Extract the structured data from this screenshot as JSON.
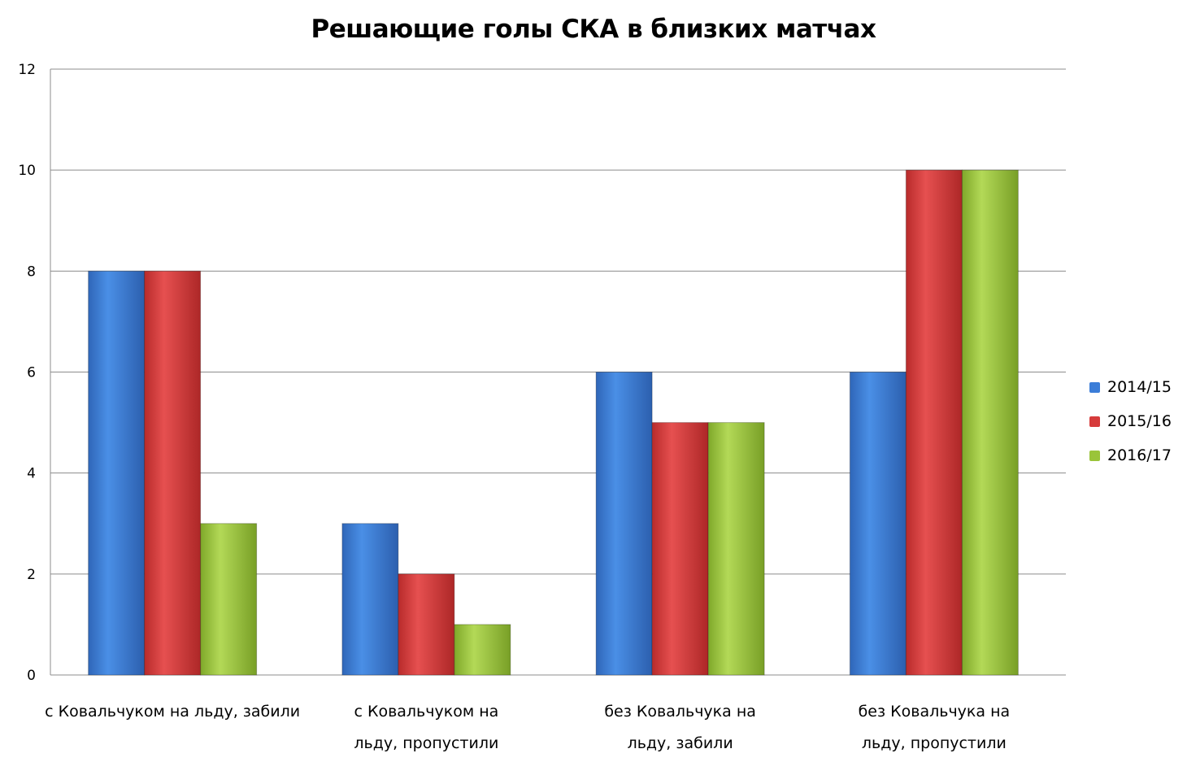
{
  "chart_data": {
    "type": "bar",
    "title": "Решающие голы СКА в близких матчах",
    "categories": [
      [
        "с Ковальчуком на льду, забили"
      ],
      [
        "с Ковальчуком на",
        "льду, пропустили"
      ],
      [
        "без Ковальчука на",
        "льду, забили"
      ],
      [
        "без Ковальчука на",
        "льду, пропустили"
      ]
    ],
    "series": [
      {
        "name": "2014/15",
        "values": [
          8,
          3,
          6,
          6
        ],
        "color": "#3b7dd8"
      },
      {
        "name": "2015/16",
        "values": [
          8,
          2,
          5,
          10
        ],
        "color": "#d63b3b"
      },
      {
        "name": "2016/17",
        "values": [
          3,
          1,
          5,
          10
        ],
        "color": "#9ac43a"
      }
    ],
    "ylim": [
      0,
      12
    ],
    "yticks": [
      0,
      2,
      4,
      6,
      8,
      10,
      12
    ],
    "grid": true,
    "legend": "right"
  }
}
